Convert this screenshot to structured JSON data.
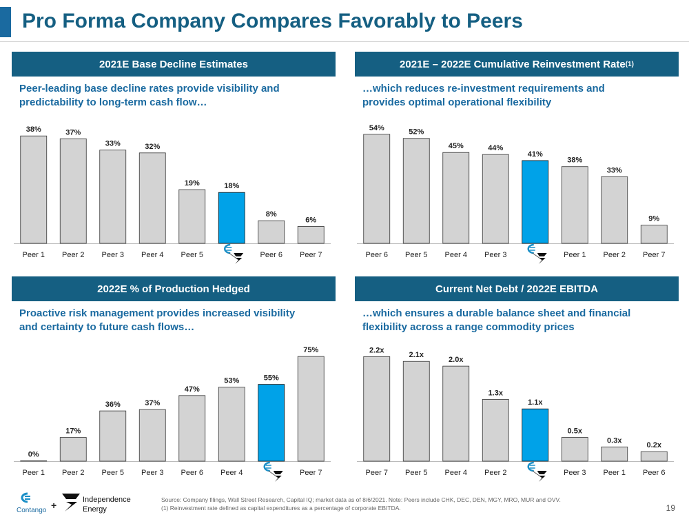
{
  "page": {
    "title": "Pro Forma Company Compares Favorably to Peers",
    "page_number": "19"
  },
  "footer": {
    "logo_left_text": "Contango",
    "logo_plus": "+",
    "logo_right_line1": "Independence",
    "logo_right_line2": "Energy",
    "source_note": "Source: Company filings, Wall Street Research, Capital IQ; market data as of 8/6/2021. Note: Peers include CHK, DEC, DEN, MGY, MRO, MUR and OVV.",
    "footnote_1": "(1) Reinvestment rate defined as capital expenditures as a percentage of corporate EBITDA."
  },
  "colors": {
    "header": "#155f82",
    "bar_peer": "#d3d3d3",
    "bar_company": "#00a2e8"
  },
  "panels": [
    {
      "header": "2021E Base Decline Estimates",
      "header_sup": "",
      "subtitle_line1": "Peer-leading base decline rates provide visibility and",
      "subtitle_line2": "predictability to long-term cash flow…"
    },
    {
      "header": "2021E – 2022E Cumulative Reinvestment Rate",
      "header_sup": "(1)",
      "subtitle_line1": "…which reduces re-investment requirements and",
      "subtitle_line2": "provides optimal operational flexibility"
    },
    {
      "header": "2022E % of Production Hedged",
      "header_sup": "",
      "subtitle_line1": "Proactive risk management provides increased visibility",
      "subtitle_line2": "and certainty to future cash flows…"
    },
    {
      "header": "Current Net Debt / 2022E EBITDA",
      "header_sup": "",
      "subtitle_line1": "…which ensures a durable balance sheet and financial",
      "subtitle_line2": "flexibility across a range commodity prices"
    }
  ],
  "chart_data": [
    {
      "type": "bar",
      "title": "2021E Base Decline Estimates",
      "categories": [
        "Peer 1",
        "Peer 2",
        "Peer 3",
        "Peer 4",
        "Peer 5",
        "Pro Forma Company",
        "Peer 6",
        "Peer 7"
      ],
      "values": [
        38,
        37,
        33,
        32,
        19,
        18,
        8,
        6
      ],
      "labels": [
        "38%",
        "37%",
        "33%",
        "32%",
        "19%",
        "18%",
        "8%",
        "6%"
      ],
      "highlight_index": 5,
      "ylim": [
        0,
        40
      ]
    },
    {
      "type": "bar",
      "title": "2021E – 2022E Cumulative Reinvestment Rate",
      "categories": [
        "Peer 6",
        "Peer 5",
        "Peer 4",
        "Peer 3",
        "Pro Forma Company",
        "Peer 1",
        "Peer 2",
        "Peer 7"
      ],
      "values": [
        54,
        52,
        45,
        44,
        41,
        38,
        33,
        9
      ],
      "labels": [
        "54%",
        "52%",
        "45%",
        "44%",
        "41%",
        "38%",
        "33%",
        "9%"
      ],
      "highlight_index": 4,
      "ylim": [
        0,
        56
      ]
    },
    {
      "type": "bar",
      "title": "2022E % of Production Hedged",
      "categories": [
        "Peer 1",
        "Peer 2",
        "Peer 5",
        "Peer 3",
        "Peer 6",
        "Peer 4",
        "Pro Forma Company",
        "Peer 7"
      ],
      "values": [
        0,
        17,
        36,
        37,
        47,
        53,
        55,
        75
      ],
      "labels": [
        "0%",
        "17%",
        "36%",
        "37%",
        "47%",
        "53%",
        "55%",
        "75%"
      ],
      "highlight_index": 6,
      "ylim": [
        0,
        80
      ]
    },
    {
      "type": "bar",
      "title": "Current Net Debt / 2022E EBITDA",
      "categories": [
        "Peer 7",
        "Peer 5",
        "Peer 4",
        "Peer 2",
        "Pro Forma Company",
        "Peer 3",
        "Peer 1",
        "Peer 6"
      ],
      "values": [
        2.2,
        2.1,
        2.0,
        1.3,
        1.1,
        0.5,
        0.3,
        0.2
      ],
      "labels": [
        "2.2x",
        "2.1x",
        "2.0x",
        "1.3x",
        "1.1x",
        "0.5x",
        "0.3x",
        "0.2x"
      ],
      "highlight_index": 4,
      "ylim": [
        0,
        2.35
      ]
    }
  ]
}
